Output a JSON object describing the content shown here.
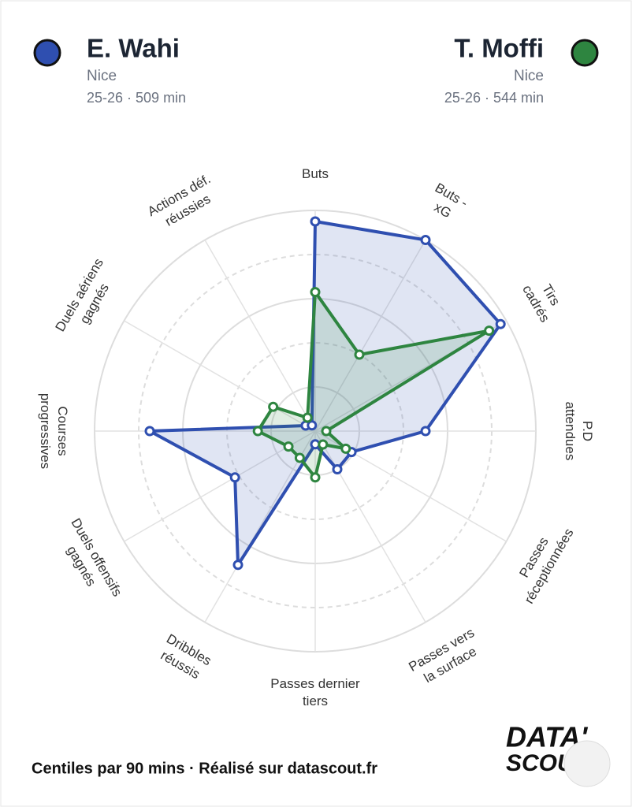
{
  "chart_data": {
    "type": "radar",
    "categories": [
      [
        "Buts"
      ],
      [
        "Buts -",
        "xG"
      ],
      [
        "Tirs",
        "cadrés"
      ],
      [
        "P.D",
        "attendues"
      ],
      [
        "Passes",
        "réceptionnées"
      ],
      [
        "Passes vers",
        "la surface"
      ],
      [
        "Passes dernier",
        "tiers"
      ],
      [
        "Dribbles",
        "réussis"
      ],
      [
        "Duels offensifs",
        "gagnés"
      ],
      [
        "Courses",
        "progressives"
      ],
      [
        "Duels aériens",
        "gagnés"
      ],
      [
        "Actions déf.",
        "réussies"
      ]
    ],
    "series": [
      {
        "name": "E. Wahi",
        "team": "Nice",
        "info": "25-26 · 509 min",
        "color": "#2f4fb0",
        "values": [
          95,
          100,
          97,
          50,
          19,
          20,
          6,
          70,
          42,
          75,
          5,
          3
        ]
      },
      {
        "name": "T. Moffi",
        "team": "Nice",
        "info": "25-26 · 544 min",
        "color": "#2e8540",
        "values": [
          63,
          40,
          91,
          5,
          16,
          7,
          21,
          14,
          14,
          26,
          22,
          7
        ]
      }
    ],
    "rlim": [
      0,
      100
    ],
    "rticks": [
      20,
      40,
      60,
      80,
      100
    ],
    "footer": "Centiles par 90 mins · Réalisé sur datascout.fr",
    "logo": [
      "DATA'",
      "SCOUT"
    ]
  }
}
